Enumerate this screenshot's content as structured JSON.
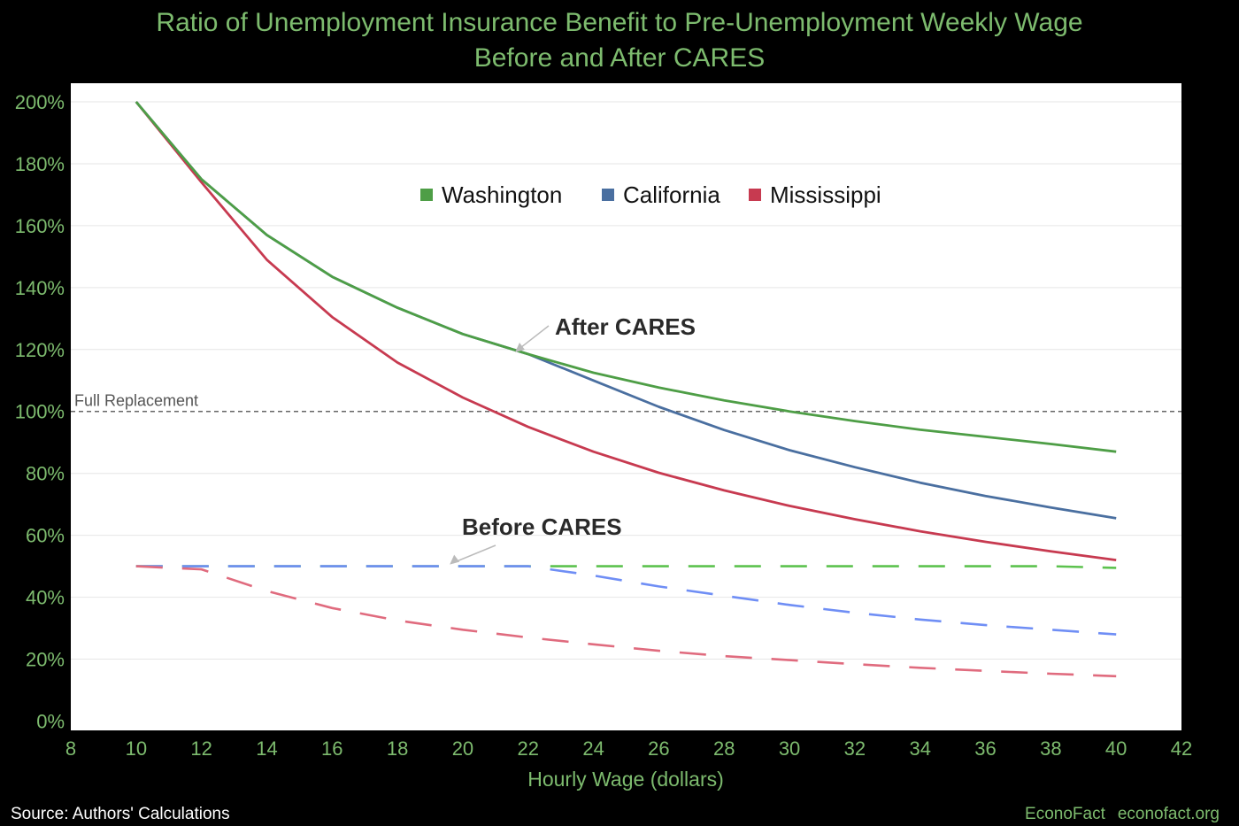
{
  "chart_data": {
    "type": "line",
    "title": "Ratio of Unemployment Insurance  Benefit to Pre-Unemployment Weekly Wage",
    "subtitle": "Before and After CARES",
    "xlabel": "Hourly Wage (dollars)",
    "ylabel": "",
    "xlim": [
      8,
      42
    ],
    "ylim": [
      -3,
      206
    ],
    "x_ticks": [
      "8",
      "10",
      "12",
      "14",
      "16",
      "18",
      "20",
      "22",
      "24",
      "26",
      "28",
      "30",
      "32",
      "34",
      "36",
      "38",
      "40",
      "42"
    ],
    "y_ticks": [
      "0%",
      "20%",
      "40%",
      "60%",
      "80%",
      "100%",
      "120%",
      "140%",
      "160%",
      "180%",
      "200%"
    ],
    "grid": "horizontal",
    "legend": {
      "placement": "top-center",
      "entries": [
        {
          "name": "Washington",
          "color": "#4e9e46"
        },
        {
          "name": "California",
          "color": "#4a6fa0"
        },
        {
          "name": "Mississippi",
          "color": "#c73a50"
        }
      ]
    },
    "x": [
      10,
      12,
      14,
      16,
      18,
      20,
      22,
      24,
      26,
      28,
      30,
      32,
      34,
      36,
      38,
      40
    ],
    "series": [
      {
        "name": "Washington",
        "group": "after",
        "color": "#4e9e46",
        "values": [
          200,
          175,
          157,
          143.5,
          133.5,
          125,
          118.5,
          112.5,
          107.7,
          103.6,
          100,
          96.9,
          94.1,
          91.8,
          89.5,
          87
        ]
      },
      {
        "name": "California",
        "group": "after",
        "color": "#4a6fa0",
        "values": [
          200,
          175,
          157,
          143.5,
          133.5,
          125,
          118.5,
          110,
          101.5,
          94,
          87.5,
          82,
          77,
          72.7,
          69,
          65.5
        ]
      },
      {
        "name": "Mississippi",
        "group": "after",
        "color": "#c73a50",
        "values": [
          200,
          174,
          149,
          130.5,
          115.8,
          104.5,
          95,
          87,
          80.2,
          74.5,
          69.5,
          65.2,
          61.3,
          57.9,
          54.8,
          52
        ]
      },
      {
        "name": "Washington",
        "group": "before",
        "color": "#5cc24e",
        "values": [
          50,
          50,
          50,
          50,
          50,
          50,
          50,
          50,
          50,
          50,
          50,
          50,
          50,
          50,
          50,
          49.5
        ]
      },
      {
        "name": "California",
        "group": "before",
        "color": "#6f8ef5",
        "values": [
          50,
          50,
          50,
          50,
          50,
          50,
          50,
          47,
          43.5,
          40.5,
          37.5,
          35,
          32.8,
          31,
          29.5,
          28
        ]
      },
      {
        "name": "Mississippi",
        "group": "before",
        "color": "#e06b7e",
        "values": [
          50,
          49,
          42,
          36.5,
          32.5,
          29.5,
          27,
          24.8,
          22.7,
          21,
          19.7,
          18.4,
          17.2,
          16.2,
          15.3,
          14.5
        ]
      }
    ],
    "reference_line": {
      "y": 100,
      "label": "Full Replacement"
    },
    "annotations": [
      {
        "text": "After CARES",
        "x": 21.6,
        "y": 118.5
      },
      {
        "text": "Before CARES",
        "x": 19.6,
        "y": 50
      }
    ]
  },
  "footer": {
    "source": "Source: Authors' Calculations",
    "brand": "EconoFact",
    "url": "econofact.org"
  }
}
